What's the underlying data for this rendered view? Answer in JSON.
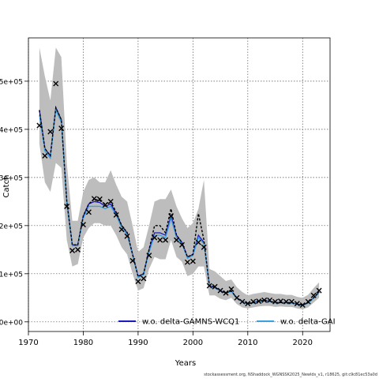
{
  "chart_data": {
    "type": "line",
    "title": "",
    "xlabel": "Years",
    "ylabel": "Catch",
    "xlim": [
      1970,
      2025
    ],
    "ylim": [
      -20000,
      590000
    ],
    "x_ticks": [
      1970,
      1980,
      1990,
      2000,
      2010,
      2020
    ],
    "y_ticks": [
      0,
      100000,
      200000,
      300000,
      400000,
      500000
    ],
    "y_tick_labels": [
      "0e+00",
      "1e+05",
      "2e+05",
      "3e+05",
      "4e+05",
      "5e+05"
    ],
    "grid": true,
    "legend_position": "bottom",
    "years": [
      1972,
      1973,
      1974,
      1975,
      1976,
      1977,
      1978,
      1979,
      1980,
      1981,
      1982,
      1983,
      1984,
      1985,
      1986,
      1987,
      1988,
      1989,
      1990,
      1991,
      1992,
      1993,
      1994,
      1995,
      1996,
      1997,
      1998,
      1999,
      2000,
      2001,
      2002,
      2003,
      2004,
      2005,
      2006,
      2007,
      2008,
      2009,
      2010,
      2011,
      2012,
      2013,
      2014,
      2015,
      2016,
      2017,
      2018,
      2019,
      2020,
      2021,
      2022,
      2023
    ],
    "observed": [
      408000,
      345000,
      395000,
      495000,
      402000,
      240000,
      148000,
      150000,
      202000,
      228000,
      256000,
      255000,
      243000,
      250000,
      222000,
      192000,
      178000,
      127000,
      84000,
      90000,
      138000,
      175000,
      170000,
      170000,
      220000,
      170000,
      160000,
      124000,
      126000,
      165000,
      155000,
      75000,
      73000,
      65000,
      60000,
      68000,
      50000,
      42000,
      38000,
      42000,
      43000,
      45000,
      45000,
      42000,
      43000,
      42000,
      42000,
      38000,
      35000,
      42000,
      55000,
      65000
    ],
    "ci_upper": [
      570000,
      510000,
      460000,
      570000,
      550000,
      330000,
      210000,
      210000,
      270000,
      295000,
      300000,
      290000,
      290000,
      315000,
      285000,
      260000,
      250000,
      200000,
      145000,
      155000,
      200000,
      250000,
      255000,
      255000,
      275000,
      240000,
      215000,
      195000,
      205000,
      235000,
      295000,
      110000,
      105000,
      95000,
      85000,
      88000,
      72000,
      62000,
      55000,
      58000,
      60000,
      62000,
      60000,
      58000,
      58000,
      56000,
      56000,
      52000,
      50000,
      56000,
      70000,
      82000
    ],
    "ci_lower": [
      370000,
      290000,
      270000,
      330000,
      320000,
      170000,
      115000,
      120000,
      175000,
      195000,
      205000,
      205000,
      200000,
      200000,
      180000,
      155000,
      140000,
      100000,
      65000,
      70000,
      110000,
      135000,
      130000,
      130000,
      170000,
      135000,
      125000,
      95000,
      100000,
      115000,
      115000,
      55000,
      55000,
      48000,
      45000,
      50000,
      37000,
      30000,
      28000,
      30000,
      32000,
      33000,
      33000,
      31000,
      32000,
      31000,
      31000,
      28000,
      26000,
      30000,
      40000,
      50000
    ],
    "series": [
      {
        "name": "w.o. delta-GAMNS-WCQ1",
        "color": "#1a1abf",
        "values": [
          440000,
          360000,
          345000,
          445000,
          420000,
          250000,
          160000,
          160000,
          220000,
          245000,
          250000,
          248000,
          240000,
          245000,
          225000,
          200000,
          185000,
          140000,
          95000,
          100000,
          150000,
          185000,
          185000,
          180000,
          220000,
          180000,
          165000,
          135000,
          140000,
          180000,
          165000,
          75000,
          72000,
          65000,
          60000,
          64000,
          50000,
          42000,
          38000,
          40000,
          43000,
          45000,
          43000,
          40000,
          40000,
          40000,
          40000,
          37000,
          35000,
          40000,
          50000,
          62000
        ]
      },
      {
        "name": "w.o. delta-GAI",
        "color": "#3aa0e0",
        "values": [
          430000,
          355000,
          340000,
          440000,
          415000,
          245000,
          158000,
          158000,
          215000,
          240000,
          240000,
          240000,
          235000,
          240000,
          222000,
          195000,
          182000,
          138000,
          92000,
          98000,
          145000,
          180000,
          180000,
          175000,
          215000,
          175000,
          162000,
          132000,
          138000,
          175000,
          162000,
          74000,
          70000,
          64000,
          59000,
          63000,
          49000,
          41000,
          37000,
          39000,
          42000,
          44000,
          42000,
          39000,
          40000,
          39000,
          39000,
          36000,
          34000,
          39000,
          49000,
          60000
        ]
      },
      {
        "name": "",
        "color": "#000000",
        "dashed": true,
        "values": [
          440000,
          360000,
          345000,
          445000,
          420000,
          250000,
          160000,
          160000,
          220000,
          245000,
          255000,
          252000,
          245000,
          250000,
          228000,
          200000,
          186000,
          140000,
          94000,
          100000,
          150000,
          200000,
          200000,
          185000,
          235000,
          180000,
          165000,
          135000,
          140000,
          225000,
          170000,
          75000,
          72000,
          65000,
          60000,
          64000,
          50000,
          42000,
          38000,
          40000,
          43000,
          45000,
          43000,
          40000,
          40000,
          40000,
          40000,
          37000,
          35000,
          40000,
          50000,
          62000
        ]
      }
    ],
    "footer": "stockassessment.org, NShaddock_WGNSSK2025_Newlds_v1, r18625, git:c9c81ec53a0d"
  }
}
